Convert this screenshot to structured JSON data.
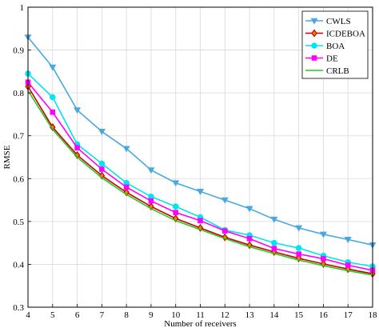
{
  "chart_data": {
    "type": "line",
    "xlabel": "Number of receivers",
    "ylabel": "RMSE",
    "xlim": [
      4,
      18
    ],
    "ylim": [
      0.3,
      1.0
    ],
    "x_ticks": [
      4,
      5,
      6,
      7,
      8,
      9,
      10,
      11,
      12,
      13,
      14,
      15,
      16,
      17,
      18
    ],
    "y_ticks": [
      0.3,
      0.4,
      0.5,
      0.6,
      0.7,
      0.8,
      0.9,
      1.0
    ],
    "x_tick_labels": [
      "4",
      "5",
      "6",
      "7",
      "8",
      "9",
      "10",
      "11",
      "12",
      "13",
      "14",
      "15",
      "16",
      "17",
      "18"
    ],
    "y_tick_labels": [
      "0.3",
      "0.4",
      "0.5",
      "0.6",
      "0.7",
      "0.8",
      "0.9",
      "1"
    ],
    "grid": true,
    "legend_position": "top-right",
    "x": [
      4,
      5,
      6,
      7,
      8,
      9,
      10,
      11,
      12,
      13,
      14,
      15,
      16,
      17,
      18
    ],
    "series": [
      {
        "name": "CWLS",
        "color": "#4aa8e0",
        "marker": "triangle-down",
        "values": [
          0.93,
          0.86,
          0.76,
          0.71,
          0.67,
          0.62,
          0.59,
          0.57,
          0.55,
          0.53,
          0.505,
          0.485,
          0.47,
          0.458,
          0.445
        ]
      },
      {
        "name": "ICDEBOA",
        "color": "#cc0000",
        "marker": "diamond",
        "values": [
          0.815,
          0.72,
          0.655,
          0.607,
          0.568,
          0.535,
          0.507,
          0.485,
          0.463,
          0.445,
          0.429,
          0.414,
          0.401,
          0.389,
          0.378
        ]
      },
      {
        "name": "BOA",
        "color": "#00e5ee",
        "marker": "circle",
        "values": [
          0.845,
          0.79,
          0.68,
          0.635,
          0.59,
          0.558,
          0.535,
          0.51,
          0.48,
          0.468,
          0.45,
          0.438,
          0.42,
          0.405,
          0.395
        ]
      },
      {
        "name": "DE",
        "color": "#ff00ff",
        "marker": "square",
        "values": [
          0.825,
          0.755,
          0.672,
          0.622,
          0.58,
          0.548,
          0.521,
          0.502,
          0.478,
          0.46,
          0.437,
          0.424,
          0.413,
          0.398,
          0.386
        ]
      },
      {
        "name": "CRLB",
        "color": "#22cc22",
        "marker": "none",
        "values": [
          0.805,
          0.715,
          0.65,
          0.602,
          0.563,
          0.53,
          0.502,
          0.481,
          0.46,
          0.441,
          0.425,
          0.41,
          0.397,
          0.385,
          0.375
        ]
      }
    ]
  }
}
